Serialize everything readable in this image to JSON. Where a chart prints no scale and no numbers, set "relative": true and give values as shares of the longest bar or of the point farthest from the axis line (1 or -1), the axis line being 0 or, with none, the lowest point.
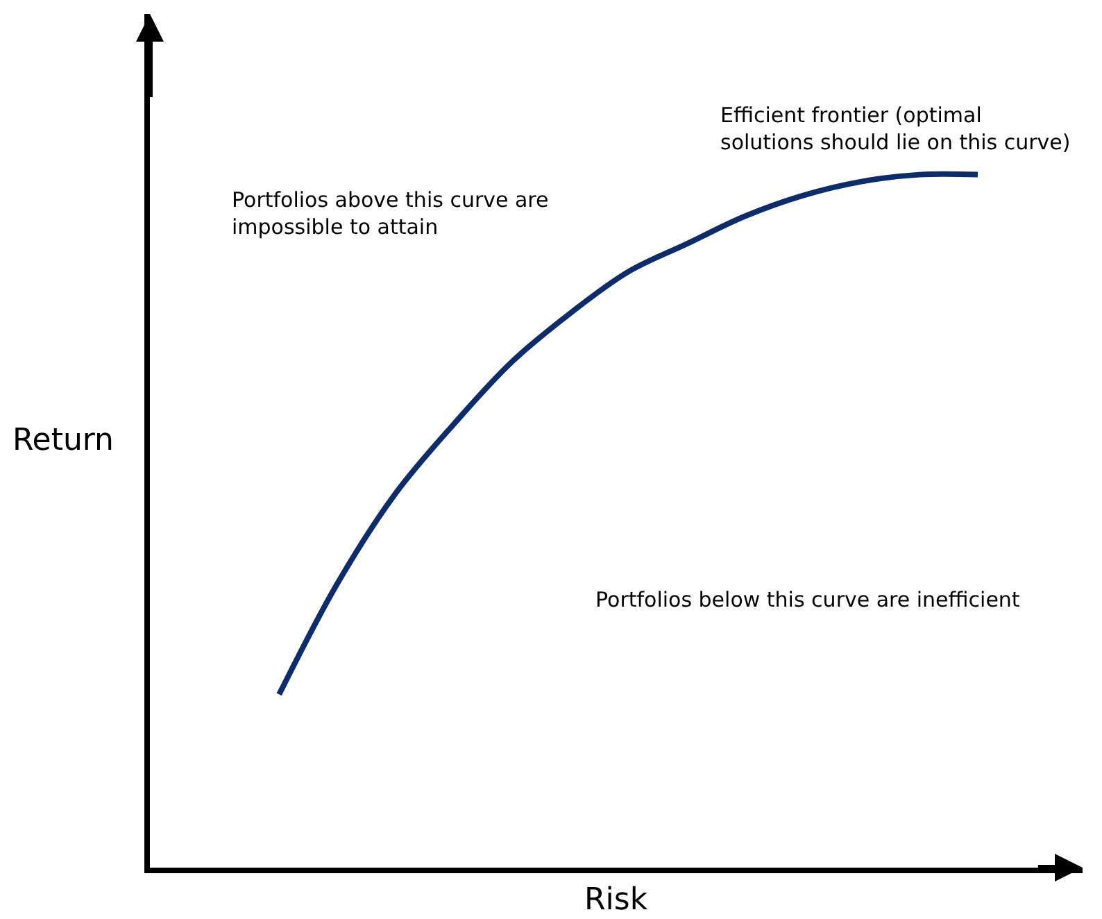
{
  "chart_data": {
    "type": "line",
    "relative": true,
    "xlabel": "Risk",
    "ylabel": "Return",
    "categories": [
      null,
      null,
      null,
      null,
      null,
      null,
      null,
      null,
      null,
      null,
      null,
      null,
      null
    ],
    "series": [
      {
        "color": "#0d2c6c",
        "values": [
          0.25,
          0.41,
          0.54,
          0.64,
          0.73,
          0.8,
          0.86,
          0.9,
          0.94,
          0.97,
          0.99,
          1.0,
          1.0
        ]
      }
    ],
    "annotations": [
      "Portfolios above this curve are impossible to attain",
      "Efficient frontier (optimal solutions should lie on this curve)",
      "Portfolios below this curve are inefficient"
    ],
    "legend": false,
    "marker": "none",
    "line_style": "solid"
  }
}
